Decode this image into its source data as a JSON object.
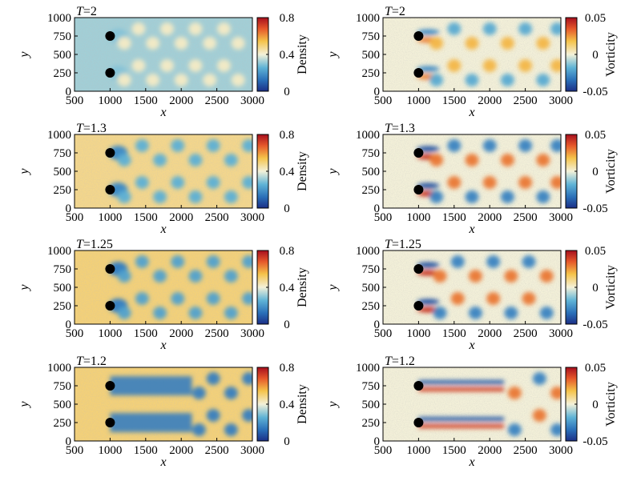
{
  "chart_data": [
    {
      "type": "heatmap",
      "field": "density",
      "title_var": "T",
      "title_value": "=2",
      "xlabel": "x",
      "ylabel": "y",
      "xlim": [
        500,
        3000
      ],
      "ylim": [
        0,
        1000
      ],
      "xticks": [
        "500",
        "1000",
        "1500",
        "2000",
        "2500",
        "3000"
      ],
      "yticks": [
        "0",
        "250",
        "500",
        "750",
        "1000"
      ],
      "colorbar": {
        "label": "Density",
        "ticks": [
          "0",
          "0.4",
          "0.8"
        ],
        "range": [
          0,
          0.8
        ]
      },
      "obstacles": [
        {
          "x": 1000,
          "y": 750
        },
        {
          "x": 1000,
          "y": 250
        }
      ],
      "wake_vortices_x": [
        1200,
        1400,
        1600,
        1800,
        2000,
        2200,
        2400,
        2600,
        2800
      ],
      "field_level": 0.32,
      "vortex_level": 0.42,
      "jet_level": null
    },
    {
      "type": "heatmap",
      "field": "vorticity",
      "title_var": "T",
      "title_value": "=2",
      "xlabel": "x",
      "ylabel": "y",
      "xlim": [
        500,
        3000
      ],
      "ylim": [
        0,
        1000
      ],
      "xticks": [
        "500",
        "1000",
        "1500",
        "2000",
        "2500",
        "3000"
      ],
      "yticks": [
        "0",
        "250",
        "500",
        "750",
        "1000"
      ],
      "colorbar": {
        "label": "Vorticity",
        "ticks": [
          "-0.05",
          "0",
          "0.05"
        ],
        "range": [
          -0.05,
          0.05
        ]
      },
      "obstacles": [
        {
          "x": 1000,
          "y": 750
        },
        {
          "x": 1000,
          "y": 250
        }
      ],
      "wake_vortices_x": [
        1250,
        1500,
        1750,
        2000,
        2250,
        2500,
        2750,
        2950
      ],
      "field_level": 0.0,
      "vortex_level": 0.02,
      "jet_level": null
    },
    {
      "type": "heatmap",
      "field": "density",
      "title_var": "T",
      "title_value": "=1.3",
      "xlabel": "x",
      "ylabel": "y",
      "xlim": [
        500,
        3000
      ],
      "ylim": [
        0,
        1000
      ],
      "xticks": [
        "500",
        "1000",
        "1500",
        "2000",
        "2500",
        "3000"
      ],
      "yticks": [
        "0",
        "250",
        "500",
        "750",
        "1000"
      ],
      "colorbar": {
        "label": "Density",
        "ticks": [
          "0",
          "0.4",
          "0.8"
        ],
        "range": [
          0,
          0.8
        ]
      },
      "obstacles": [
        {
          "x": 1000,
          "y": 750
        },
        {
          "x": 1000,
          "y": 250
        }
      ],
      "wake_vortices_x": [
        1200,
        1450,
        1700,
        1950,
        2200,
        2450,
        2700,
        2950
      ],
      "field_level": 0.48,
      "vortex_level": 0.25,
      "jet_level": null
    },
    {
      "type": "heatmap",
      "field": "vorticity",
      "title_var": "T",
      "title_value": "=1.3",
      "xlabel": "x",
      "ylabel": "y",
      "xlim": [
        500,
        3000
      ],
      "ylim": [
        0,
        1000
      ],
      "xticks": [
        "500",
        "1000",
        "1500",
        "2000",
        "2500",
        "3000"
      ],
      "yticks": [
        "0",
        "250",
        "500",
        "750",
        "1000"
      ],
      "colorbar": {
        "label": "Vorticity",
        "ticks": [
          "-0.05",
          "0",
          "0.05"
        ],
        "range": [
          -0.05,
          0.05
        ]
      },
      "obstacles": [
        {
          "x": 1000,
          "y": 750
        },
        {
          "x": 1000,
          "y": 250
        }
      ],
      "wake_vortices_x": [
        1250,
        1500,
        1750,
        2000,
        2250,
        2500,
        2750,
        2950
      ],
      "field_level": 0.0,
      "vortex_level": 0.03,
      "jet_level": null
    },
    {
      "type": "heatmap",
      "field": "density",
      "title_var": "T",
      "title_value": "=1.25",
      "xlabel": "x",
      "ylabel": "y",
      "xlim": [
        500,
        3000
      ],
      "ylim": [
        0,
        1000
      ],
      "xticks": [
        "500",
        "1000",
        "1500",
        "2000",
        "2500",
        "3000"
      ],
      "yticks": [
        "0",
        "250",
        "500",
        "750",
        "1000"
      ],
      "colorbar": {
        "label": "Density",
        "ticks": [
          "0",
          "0.4",
          "0.8"
        ],
        "range": [
          0,
          0.8
        ]
      },
      "obstacles": [
        {
          "x": 1000,
          "y": 750
        },
        {
          "x": 1000,
          "y": 250
        }
      ],
      "wake_vortices_x": [
        1200,
        1450,
        1700,
        1950,
        2200,
        2450,
        2700,
        2950
      ],
      "field_level": 0.5,
      "vortex_level": 0.22,
      "jet_level": null
    },
    {
      "type": "heatmap",
      "field": "vorticity",
      "title_var": "T",
      "title_value": "=1.25",
      "xlabel": "x",
      "ylabel": "y",
      "xlim": [
        500,
        3000
      ],
      "ylim": [
        0,
        1000
      ],
      "xticks": [
        "500",
        "1000",
        "1500",
        "2000",
        "2500",
        "3000"
      ],
      "yticks": [
        "0",
        "250",
        "500",
        "750",
        "1000"
      ],
      "colorbar": {
        "label": "Vorticity",
        "ticks": [
          "-0.05",
          "0",
          "0.05"
        ],
        "range": [
          -0.05,
          0.05
        ]
      },
      "obstacles": [
        {
          "x": 1000,
          "y": 750
        },
        {
          "x": 1000,
          "y": 250
        }
      ],
      "wake_vortices_x": [
        1300,
        1550,
        1800,
        2050,
        2300,
        2550,
        2800
      ],
      "field_level": 0.0,
      "vortex_level": 0.03,
      "jet_level": null
    },
    {
      "type": "heatmap",
      "field": "density",
      "title_var": "T",
      "title_value": "=1.2",
      "xlabel": "x",
      "ylabel": "y",
      "xlim": [
        500,
        3000
      ],
      "ylim": [
        0,
        1000
      ],
      "xticks": [
        "500",
        "1000",
        "1500",
        "2000",
        "2500",
        "3000"
      ],
      "yticks": [
        "0",
        "250",
        "500",
        "750",
        "1000"
      ],
      "colorbar": {
        "label": "Density",
        "ticks": [
          "0",
          "0.4",
          "0.8"
        ],
        "range": [
          0,
          0.8
        ]
      },
      "obstacles": [
        {
          "x": 1000,
          "y": 750
        },
        {
          "x": 1000,
          "y": 250
        }
      ],
      "wake_vortices_x": [
        2250,
        2450,
        2700,
        2950
      ],
      "field_level": 0.5,
      "vortex_level": 0.15,
      "jet_level": 0.15,
      "jet_end_x": 2150
    },
    {
      "type": "heatmap",
      "field": "vorticity",
      "title_var": "T",
      "title_value": "=1.2",
      "xlabel": "x",
      "ylabel": "y",
      "xlim": [
        500,
        3000
      ],
      "ylim": [
        0,
        1000
      ],
      "xticks": [
        "500",
        "1000",
        "1500",
        "2000",
        "2500",
        "3000"
      ],
      "yticks": [
        "0",
        "250",
        "500",
        "750",
        "1000"
      ],
      "colorbar": {
        "label": "Vorticity",
        "ticks": [
          "-0.05",
          "0",
          "0.05"
        ],
        "range": [
          -0.05,
          0.05
        ]
      },
      "obstacles": [
        {
          "x": 1000,
          "y": 750
        },
        {
          "x": 1000,
          "y": 250
        }
      ],
      "wake_vortices_x": [
        2350,
        2700,
        2950
      ],
      "field_level": 0.0,
      "vortex_level": 0.03,
      "jet_level": 0.04,
      "jet_end_x": 2200
    }
  ]
}
